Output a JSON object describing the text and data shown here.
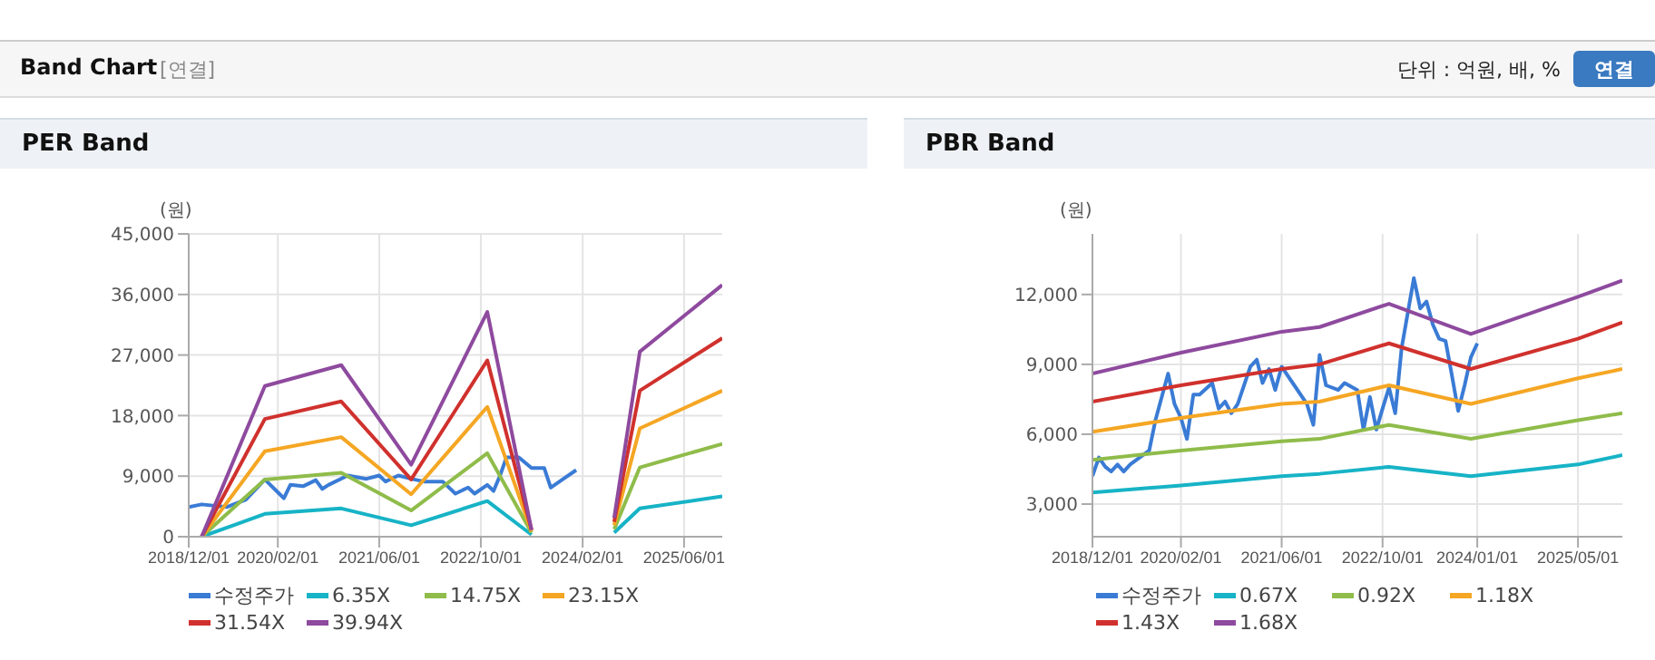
{
  "chart_data": [
    {
      "type": "line",
      "title": "PER Band",
      "ylabel": "(원)",
      "annotations": [
        "Band Chart",
        "[연결]",
        "단위 : 억원, 배, %",
        "연결"
      ],
      "xlim": [
        "2018-12-01",
        "2025-12-01"
      ],
      "xticks": [
        {
          "value": "2018-12-01",
          "label": "2018/12/01"
        },
        {
          "value": "2020-02-01",
          "label": "2020/02/01"
        },
        {
          "value": "2021-06-01",
          "label": "2021/06/01"
        },
        {
          "value": "2022-10-01",
          "label": "2022/10/01"
        },
        {
          "value": "2024-02-01",
          "label": "2024/02/01"
        },
        {
          "value": "2025-06-01",
          "label": "2025/06/01"
        }
      ],
      "ylim": [
        0,
        45000
      ],
      "yticks": [
        0,
        {
          "value": 9000,
          "label": "9,000"
        },
        {
          "value": 18000,
          "label": "18,000"
        },
        {
          "value": 27000,
          "label": "27,000"
        },
        {
          "value": 36000,
          "label": "36,000"
        },
        {
          "value": 45000,
          "label": "45,000"
        }
      ],
      "grid": true,
      "legend": "bottom",
      "series": [
        {
          "name": "수정주가",
          "color": "#3a7bd5",
          "x": [
            "2018-12",
            "2019-02",
            "2019-06",
            "2019-09",
            "2019-12",
            "2020-02",
            "2020-03",
            "2020-04",
            "2020-06",
            "2020-08",
            "2020-09",
            "2020-10",
            "2021-01",
            "2021-04",
            "2021-06",
            "2021-07",
            "2021-09",
            "2021-11",
            "2022-01",
            "2022-02",
            "2022-04",
            "2022-06",
            "2022-08",
            "2022-09",
            "2022-11",
            "2022-12",
            "2023-01",
            "2023-02",
            "2023-04",
            "2023-06",
            "2023-08",
            "2023-09",
            "2023-11",
            "2024-01"
          ],
          "values": [
            4400,
            4800,
            4400,
            5500,
            8500,
            6600,
            5700,
            7700,
            7500,
            8400,
            7100,
            7700,
            9100,
            8600,
            9100,
            8200,
            9100,
            8600,
            8200,
            8200,
            8200,
            6400,
            7300,
            6400,
            7700,
            6800,
            9100,
            11800,
            11800,
            10200,
            10200,
            7300,
            8600,
            9900
          ]
        },
        {
          "name": "6.35X",
          "color": "#17b3c6",
          "x": [
            "2019-02",
            "2019-12",
            "2020-12",
            "2021-11",
            "2022-11",
            "2023-06",
            "2024-01",
            "2024-07",
            "2024-11",
            "2025-12"
          ],
          "values": [
            0,
            3400,
            4200,
            1700,
            5300,
            300,
            null,
            600,
            4200,
            6000
          ]
        },
        {
          "name": "14.75X",
          "color": "#8fbc4a",
          "x": [
            "2019-02",
            "2019-12",
            "2020-12",
            "2021-11",
            "2022-11",
            "2023-06",
            "2024-01",
            "2024-07",
            "2024-11",
            "2025-12"
          ],
          "values": [
            0,
            8500,
            9500,
            3900,
            12400,
            600,
            null,
            1100,
            10300,
            13800
          ]
        },
        {
          "name": "23.15X",
          "color": "#f5a623",
          "x": [
            "2019-02",
            "2019-12",
            "2020-12",
            "2021-11",
            "2022-11",
            "2023-06",
            "2024-01",
            "2024-07",
            "2024-11",
            "2025-12"
          ],
          "values": [
            0,
            12700,
            14800,
            6300,
            19300,
            800,
            null,
            1700,
            16100,
            21700
          ]
        },
        {
          "name": "31.54X",
          "color": "#d0312d",
          "x": [
            "2019-02",
            "2019-12",
            "2020-12",
            "2021-11",
            "2022-11",
            "2023-06",
            "2024-01",
            "2024-07",
            "2024-11",
            "2025-12"
          ],
          "values": [
            0,
            17500,
            20100,
            8500,
            26200,
            1000,
            null,
            2200,
            21700,
            29500
          ]
        },
        {
          "name": "39.94X",
          "color": "#8e4a9e",
          "x": [
            "2019-02",
            "2019-12",
            "2020-12",
            "2021-11",
            "2022-11",
            "2023-06",
            "2024-01",
            "2024-07",
            "2024-11",
            "2025-12"
          ],
          "values": [
            0,
            22400,
            25500,
            10700,
            33400,
            1000,
            null,
            2800,
            27500,
            37400
          ]
        }
      ]
    },
    {
      "type": "line",
      "title": "PBR Band",
      "ylabel": "(원)",
      "xlim": [
        "2018-12-01",
        "2025-12-01"
      ],
      "xticks": [
        {
          "value": "2018-12-01",
          "label": "2018/12/01"
        },
        {
          "value": "2020-02-01",
          "label": "2020/02/01"
        },
        {
          "value": "2021-06-01",
          "label": "2021/06/01"
        },
        {
          "value": "2022-10-01",
          "label": "2022/10/01"
        },
        {
          "value": "2024-01-01",
          "label": "2024/01/01"
        },
        {
          "value": "2025-05-01",
          "label": "2025/05/01"
        }
      ],
      "ylim": [
        1600,
        14600
      ],
      "yticks": [
        {
          "value": 3000,
          "label": "3,000"
        },
        {
          "value": 6000,
          "label": "6,000"
        },
        {
          "value": 9000,
          "label": "9,000"
        },
        {
          "value": 12000,
          "label": "12,000"
        }
      ],
      "grid": true,
      "legend": "bottom",
      "series": [
        {
          "name": "수정주가",
          "color": "#3a7bd5",
          "x": [
            "2018-12",
            "2019-01",
            "2019-02",
            "2019-03",
            "2019-04",
            "2019-05",
            "2019-06",
            "2019-08",
            "2019-09",
            "2019-10",
            "2019-12",
            "2020-01",
            "2020-02",
            "2020-03",
            "2020-04",
            "2020-05",
            "2020-07",
            "2020-08",
            "2020-09",
            "2020-10",
            "2020-11",
            "2021-01",
            "2021-02",
            "2021-03",
            "2021-04",
            "2021-05",
            "2021-06",
            "2021-07",
            "2021-08",
            "2021-10",
            "2021-11",
            "2021-12",
            "2022-01",
            "2022-03",
            "2022-04",
            "2022-06",
            "2022-07",
            "2022-08",
            "2022-09",
            "2022-10",
            "2022-11",
            "2022-12",
            "2023-01",
            "2023-03",
            "2023-04",
            "2023-05",
            "2023-06",
            "2023-07",
            "2023-08",
            "2023-09",
            "2023-10",
            "2023-11",
            "2023-12",
            "2024-01"
          ],
          "values": [
            4200,
            5000,
            4600,
            4400,
            4700,
            4400,
            4700,
            5100,
            5300,
            6600,
            8600,
            7300,
            6700,
            5800,
            7700,
            7700,
            8200,
            7100,
            7400,
            6900,
            7300,
            8900,
            9200,
            8200,
            8800,
            7900,
            8900,
            8500,
            8100,
            7300,
            6400,
            9400,
            8100,
            7900,
            8200,
            7900,
            6200,
            7600,
            6200,
            7100,
            8000,
            6900,
            9700,
            12700,
            11400,
            11700,
            10700,
            10100,
            10000,
            8500,
            7000,
            8100,
            9300,
            9900
          ]
        },
        {
          "name": "0.67X",
          "color": "#17b3c6",
          "x": [
            "2018-12",
            "2020-02",
            "2021-06",
            "2021-12",
            "2022-11",
            "2023-12",
            "2025-05",
            "2025-12"
          ],
          "values": [
            3500,
            3800,
            4200,
            4300,
            4600,
            4200,
            4700,
            5100
          ]
        },
        {
          "name": "0.92X",
          "color": "#8fbc4a",
          "x": [
            "2018-12",
            "2020-02",
            "2021-06",
            "2021-12",
            "2022-11",
            "2023-12",
            "2025-05",
            "2025-12"
          ],
          "values": [
            4900,
            5300,
            5700,
            5800,
            6400,
            5800,
            6600,
            6900
          ]
        },
        {
          "name": "1.18X",
          "color": "#f5a623",
          "x": [
            "2018-12",
            "2020-02",
            "2021-06",
            "2021-12",
            "2022-11",
            "2023-12",
            "2025-05",
            "2025-12"
          ],
          "values": [
            6100,
            6700,
            7300,
            7400,
            8100,
            7300,
            8400,
            8800
          ]
        },
        {
          "name": "1.43X",
          "color": "#d0312d",
          "x": [
            "2018-12",
            "2020-02",
            "2021-06",
            "2021-12",
            "2022-11",
            "2023-12",
            "2025-05",
            "2025-12"
          ],
          "values": [
            7400,
            8100,
            8800,
            9000,
            9900,
            8800,
            10100,
            10800
          ]
        },
        {
          "name": "1.68X",
          "color": "#8e4a9e",
          "x": [
            "2018-12",
            "2020-02",
            "2021-06",
            "2021-12",
            "2022-11",
            "2023-12",
            "2025-05",
            "2025-12"
          ],
          "values": [
            8600,
            9500,
            10400,
            10600,
            11600,
            10300,
            11900,
            12600
          ]
        }
      ]
    }
  ]
}
